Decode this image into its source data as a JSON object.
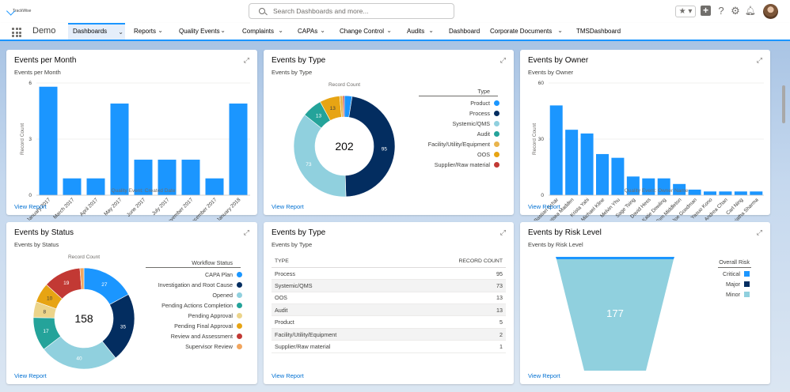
{
  "header": {
    "logo_text": "TrackWise",
    "search_placeholder": "Search Dashboards and more...",
    "icons": [
      "star-icon",
      "add-icon",
      "help-icon",
      "gear-icon",
      "bell-icon",
      "avatar"
    ]
  },
  "nav": {
    "app_name": "Demo",
    "items": [
      {
        "label": "Dashboards",
        "dropdown": true,
        "active": true
      },
      {
        "label": "Reports",
        "dropdown": true
      },
      {
        "label": "Quality Events",
        "dropdown": true
      },
      {
        "label": "Complaints",
        "dropdown": true
      },
      {
        "label": "CAPAs",
        "dropdown": true
      },
      {
        "label": "Change Control",
        "dropdown": true
      },
      {
        "label": "Audits",
        "dropdown": true
      },
      {
        "label": "Dashboard",
        "dropdown": false
      },
      {
        "label": "Corporate Documents",
        "dropdown": true
      },
      {
        "label": "TMSDashboard",
        "dropdown": false
      }
    ]
  },
  "cards": {
    "events_per_month": {
      "title": "Events per Month",
      "subtitle": "Events per Month",
      "view_report": "View Report",
      "ylabel": "Record Count",
      "xlabel": "Quality Event: Created Date"
    },
    "events_by_type_donut": {
      "title": "Events by Type",
      "subtitle": "Events by Type",
      "view_report": "View Report",
      "chart_label": "Record Count",
      "legend_title": "Type",
      "total": "202"
    },
    "events_by_owner": {
      "title": "Events by Owner",
      "subtitle": "Events by Owner",
      "view_report": "View Report",
      "ylabel": "Record Count",
      "xlabel": "Quality Event: Owner Name"
    },
    "events_by_status": {
      "title": "Events by Status",
      "subtitle": "Events by Status",
      "view_report": "View Report",
      "chart_label": "Record Count",
      "legend_title": "Workflow Status",
      "total": "158"
    },
    "events_by_type_table": {
      "title": "Events by Type",
      "subtitle": "Events by Type",
      "view_report": "View Report",
      "columns": [
        "TYPE",
        "RECORD COUNT"
      ],
      "rows": [
        [
          "Process",
          "95"
        ],
        [
          "Systemic/QMS",
          "73"
        ],
        [
          "OOS",
          "13"
        ],
        [
          "Audit",
          "13"
        ],
        [
          "Product",
          "5"
        ],
        [
          "Facility/Utility/Equipment",
          "2"
        ],
        [
          "Supplier/Raw material",
          "1"
        ]
      ]
    },
    "events_by_risk": {
      "title": "Events by Risk Level",
      "subtitle": "Events by Risk Level",
      "view_report": "View Report",
      "legend_title": "Overall Risk",
      "center_value": "177"
    }
  },
  "chart_data": [
    {
      "id": "events_per_month",
      "type": "bar",
      "categories": [
        "January 2017",
        "March 2017",
        "April 2017",
        "May 2017",
        "June 2017",
        "July 2017",
        "November 2017",
        "December 2017",
        "January 2018"
      ],
      "values": [
        5.8,
        0.9,
        0.9,
        4.9,
        1.9,
        1.9,
        1.9,
        0.9,
        4.9
      ],
      "ylim": [
        0,
        6
      ],
      "yticks": [
        "0",
        "3",
        "6"
      ],
      "xlabel": "Quality Event: Created Date",
      "ylabel": "Record Count",
      "color": "#1b96ff"
    },
    {
      "id": "events_by_type",
      "type": "pie",
      "donut": true,
      "center_label": "202",
      "slices": [
        {
          "label": "Product",
          "value": 5,
          "color": "#1b96ff",
          "show": ""
        },
        {
          "label": "Process",
          "value": 95,
          "color": "#032d60",
          "show": "95"
        },
        {
          "label": "Systemic/QMS",
          "value": 73,
          "color": "#90d0de",
          "show": "73"
        },
        {
          "label": "Audit",
          "value": 13,
          "color": "#24a39a",
          "show": "13"
        },
        {
          "label": "Facility/Utility/Equipment",
          "value": 2,
          "color": "#e9b44c",
          "show": ""
        },
        {
          "label": "OOS",
          "value": 13,
          "color": "#e7a413",
          "show": "13"
        },
        {
          "label": "Supplier/Raw material",
          "value": 1,
          "color": "#c23934",
          "show": ""
        }
      ],
      "draw_order": [
        0,
        1,
        2,
        3,
        5,
        4,
        6
      ]
    },
    {
      "id": "events_by_owner",
      "type": "bar",
      "categories": [
        "Bastian Schär",
        "Chelsea Madden",
        "Krista Yahi",
        "Michael Kline",
        "Melvin Yhu",
        "Sage Tsing",
        "David Hess",
        "Katie Dowling",
        "Tom Middleton",
        "Joe Goodman",
        "Yasuo Kono",
        "Andrea Chan",
        "Carl Ning",
        "Sujatha Sharma"
      ],
      "values": [
        48,
        35,
        33,
        22,
        20,
        10,
        9,
        9,
        6,
        3,
        2,
        2,
        2,
        2
      ],
      "ylim": [
        0,
        60
      ],
      "yticks": [
        "0",
        "30",
        "60"
      ],
      "xlabel": "Quality Event: Owner Name",
      "ylabel": "Record Count",
      "color": "#1b96ff"
    },
    {
      "id": "events_by_status",
      "type": "pie",
      "donut": true,
      "center_label": "158",
      "slices": [
        {
          "label": "CAPA Plan",
          "value": 27,
          "color": "#1b96ff",
          "show": "27"
        },
        {
          "label": "Investigation and Root Cause",
          "value": 35,
          "color": "#032d60",
          "show": "35"
        },
        {
          "label": "Opened",
          "value": 40,
          "color": "#90d0de",
          "show": "40"
        },
        {
          "label": "Pending Actions Completion",
          "value": 17,
          "color": "#24a39a",
          "show": "17"
        },
        {
          "label": "Pending Approval",
          "value": 8,
          "color": "#ecd48a",
          "show": "8"
        },
        {
          "label": "Pending Final Approval",
          "value": 10,
          "color": "#e7a413",
          "show": "10"
        },
        {
          "label": "Review and Assessment",
          "value": 19,
          "color": "#c23934",
          "show": "19"
        },
        {
          "label": "Supervisor Review",
          "value": 2,
          "color": "#f2a65e",
          "show": ""
        }
      ]
    },
    {
      "id": "events_by_risk",
      "type": "bar",
      "subtype": "funnel",
      "categories": [
        "Critical",
        "Major",
        "Minor"
      ],
      "values": [
        1,
        0,
        177
      ],
      "colors": [
        "#1b96ff",
        "#032d60",
        "#90d0de"
      ]
    }
  ]
}
